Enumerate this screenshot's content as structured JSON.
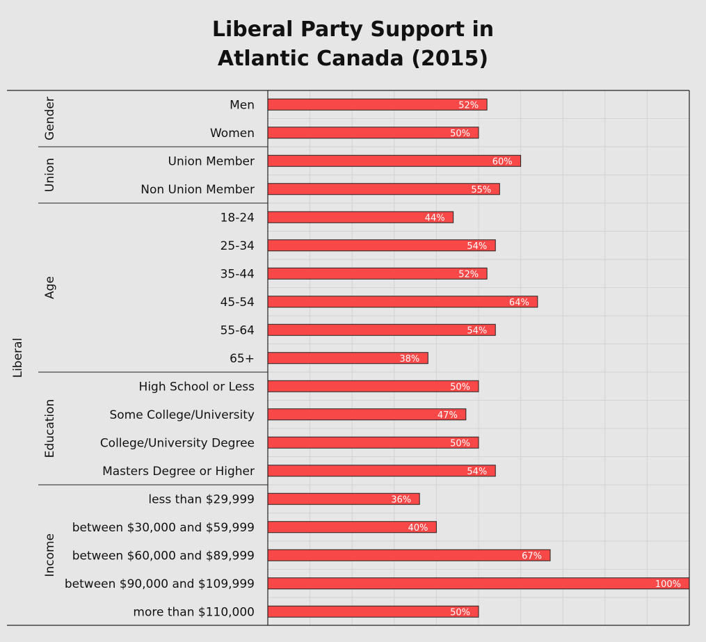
{
  "chart_data": {
    "type": "bar",
    "orientation": "horizontal",
    "title_lines": [
      "Liberal Party Support in",
      "Atlantic Canada (2015)"
    ],
    "outer_group_label": "Liberal",
    "groups": [
      {
        "name": "Gender",
        "categories": [
          "Men",
          "Women"
        ],
        "values": [
          52,
          50
        ],
        "labels": [
          "52%",
          "50%"
        ]
      },
      {
        "name": "Union",
        "categories": [
          "Union Member",
          "Non Union Member"
        ],
        "values": [
          60,
          55
        ],
        "labels": [
          "60%",
          "55%"
        ]
      },
      {
        "name": "Age",
        "categories": [
          "18-24",
          "25-34",
          "35-44",
          "45-54",
          "55-64",
          "65+"
        ],
        "values": [
          44,
          54,
          52,
          64,
          54,
          38
        ],
        "labels": [
          "44%",
          "54%",
          "52%",
          "64%",
          "54%",
          "38%"
        ]
      },
      {
        "name": "Education",
        "categories": [
          "High School or Less",
          "Some College/University",
          "College/University Degree",
          "Masters Degree or Higher"
        ],
        "values": [
          50,
          47,
          50,
          54
        ],
        "labels": [
          "50%",
          "47%",
          "50%",
          "54%"
        ]
      },
      {
        "name": "Income",
        "categories": [
          "less than $29,999",
          "between $30,000 and $59,999",
          "between $60,000 and $89,999",
          "between $90,000 and $109,999",
          "more than $110,000"
        ],
        "values": [
          36,
          40,
          67,
          100,
          50
        ],
        "labels": [
          "36%",
          "40%",
          "67%",
          "100%",
          "50%"
        ]
      }
    ],
    "xlim": [
      0,
      100
    ],
    "grid": true,
    "bar_color": "#f94848"
  }
}
